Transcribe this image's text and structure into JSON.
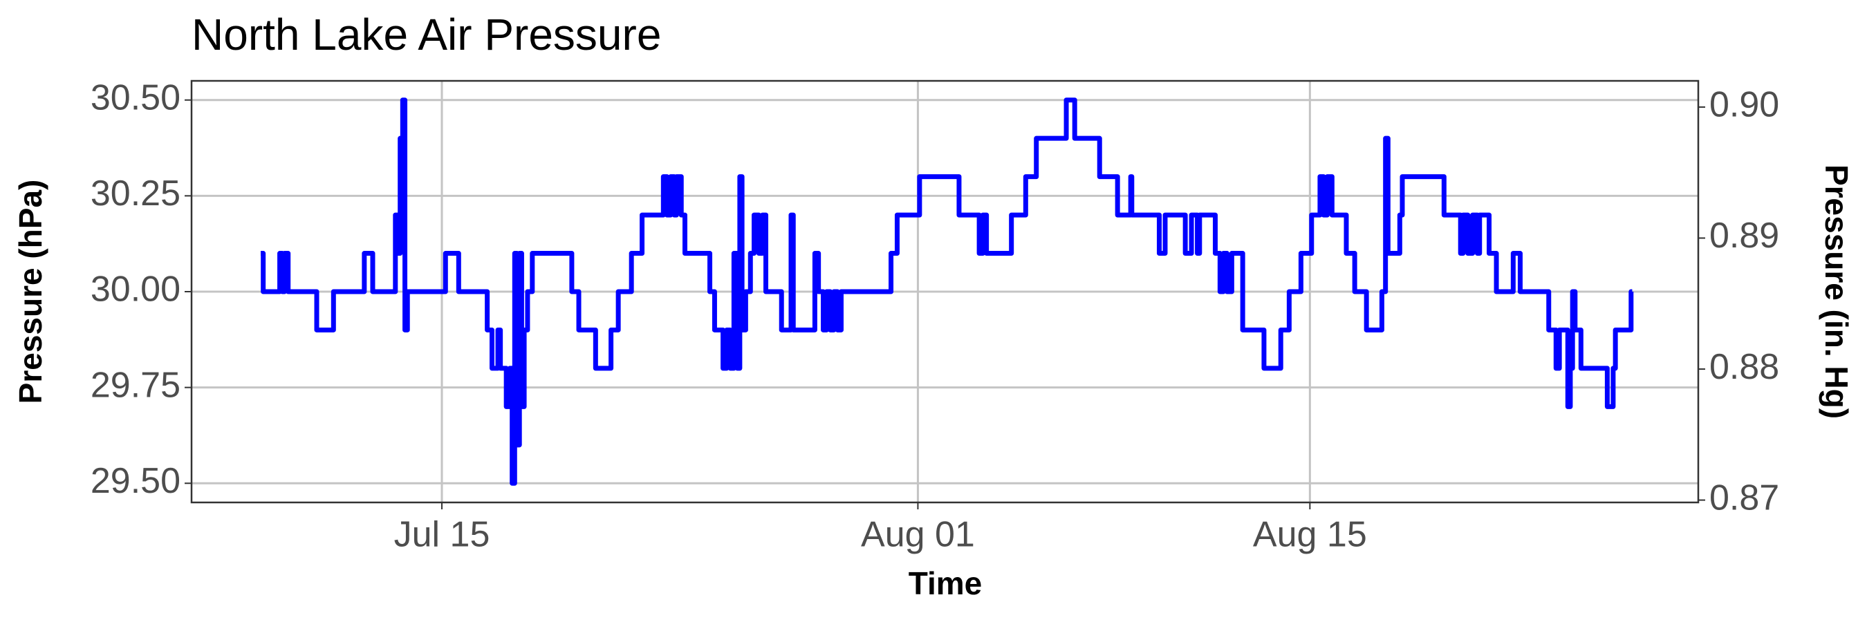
{
  "chart_data": {
    "type": "line",
    "step": true,
    "title": "North Lake Air Pressure",
    "x_label": "Time",
    "y_label": "Pressure (hPa)",
    "y2_label": "Pressure (in. Hg)",
    "color": "#0000ff",
    "grid": true,
    "xlim": [
      6.06,
      59.87
    ],
    "xticks": [
      {
        "value": 15,
        "label": "Jul 15"
      },
      {
        "value": 32,
        "label": "Aug 01"
      },
      {
        "value": 46,
        "label": "Aug 15"
      }
    ],
    "ylim": [
      29.45,
      30.55
    ],
    "yticks": [
      {
        "value": 29.5,
        "label": "29.50"
      },
      {
        "value": 29.75,
        "label": "29.75"
      },
      {
        "value": 30,
        "label": "30.00"
      },
      {
        "value": 30.25,
        "label": "30.25"
      },
      {
        "value": 30.5,
        "label": "30.50"
      }
    ],
    "y2lim": [
      0.86982,
      0.902
    ],
    "y2ticks": [
      0.87,
      0.88,
      0.89,
      {
        "value": 0.9,
        "label": "0.90"
      }
    ],
    "x": [
      8.53,
      8.62,
      9.21,
      9.3,
      9.38,
      9.51,
      10.53,
      11.13,
      12.23,
      12.53,
      13.34,
      13.43,
      13.51,
      13.6,
      13.68,
      13.77,
      15.13,
      15.6,
      16.62,
      16.79,
      17.0,
      17.09,
      17.3,
      17.43,
      17.51,
      17.6,
      17.68,
      17.77,
      17.85,
      17.94,
      18.06,
      18.23,
      19.64,
      19.89,
      20.49,
      21.04,
      21.3,
      21.77,
      22.15,
      22.91,
      23.04,
      23.17,
      23.3,
      23.38,
      23.55,
      23.68,
      24.57,
      24.74,
      25.04,
      25.17,
      25.3,
      25.43,
      25.55,
      25.64,
      25.72,
      25.85,
      26.02,
      26.15,
      26.32,
      26.45,
      26.57,
      27.13,
      27.47,
      27.55,
      28.32,
      28.45,
      28.62,
      28.74,
      28.87,
      29.0,
      29.13,
      29.26,
      31.04,
      31.26,
      32.06,
      33.47,
      34.19,
      34.32,
      34.45,
      35.34,
      35.85,
      36.23,
      37.3,
      37.6,
      38.49,
      39.13,
      39.6,
      39.64,
      40.62,
      40.83,
      41.55,
      41.77,
      41.98,
      42.06,
      42.62,
      42.79,
      42.91,
      43.04,
      43.21,
      43.6,
      44.36,
      44.96,
      45.26,
      45.68,
      46.06,
      46.36,
      46.49,
      46.62,
      46.79,
      47.3,
      47.6,
      48.02,
      48.57,
      48.7,
      48.79,
      49.21,
      49.3,
      50.79,
      51.38,
      51.47,
      51.64,
      51.81,
      51.98,
      52.06,
      52.4,
      52.66,
      53.26,
      53.51,
      54.53,
      54.79,
      54.91,
      55.21,
      55.3,
      55.38,
      55.47,
      55.68,
      56.62,
      56.83,
      56.91,
      57.47,
      57.51
    ],
    "values": [
      30.1,
      30.0,
      30.1,
      30.0,
      30.1,
      30.0,
      29.9,
      30.0,
      30.1,
      30.0,
      30.2,
      30.1,
      30.4,
      30.5,
      29.9,
      30.0,
      30.1,
      30.0,
      29.9,
      29.8,
      29.9,
      29.8,
      29.7,
      29.8,
      29.5,
      30.1,
      29.6,
      30.1,
      29.7,
      29.9,
      30.0,
      30.1,
      30.0,
      29.9,
      29.8,
      29.9,
      30.0,
      30.1,
      30.2,
      30.3,
      30.2,
      30.3,
      30.2,
      30.3,
      30.2,
      30.1,
      30.0,
      29.9,
      29.8,
      29.9,
      29.8,
      30.1,
      29.8,
      30.3,
      29.9,
      30.0,
      30.1,
      30.2,
      30.1,
      30.2,
      30.0,
      29.9,
      30.2,
      29.9,
      30.1,
      30.0,
      29.9,
      30.0,
      29.9,
      30.0,
      29.9,
      30.0,
      30.1,
      30.2,
      30.3,
      30.2,
      30.1,
      30.2,
      30.1,
      30.2,
      30.3,
      30.4,
      30.5,
      30.4,
      30.3,
      30.2,
      30.3,
      30.2,
      30.1,
      30.2,
      30.1,
      30.2,
      30.1,
      30.2,
      30.1,
      30.0,
      30.1,
      30.0,
      30.1,
      29.9,
      29.8,
      29.9,
      30.0,
      30.1,
      30.2,
      30.3,
      30.2,
      30.3,
      30.2,
      30.1,
      30.0,
      29.9,
      30.0,
      30.4,
      30.1,
      30.2,
      30.3,
      30.2,
      30.1,
      30.2,
      30.1,
      30.2,
      30.1,
      30.2,
      30.1,
      30.0,
      30.1,
      30.0,
      29.9,
      29.8,
      29.9,
      29.7,
      29.8,
      30.0,
      29.9,
      29.8,
      29.7,
      29.8,
      29.9,
      30.0,
      30.0
    ]
  }
}
